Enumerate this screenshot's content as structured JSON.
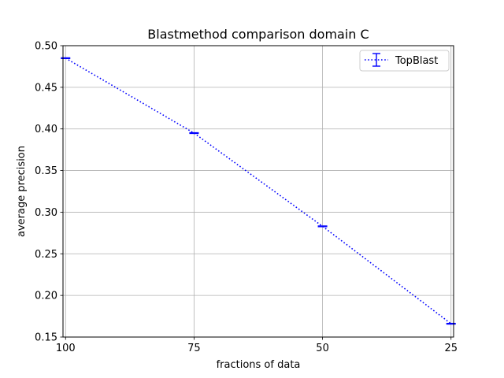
{
  "chart_data": {
    "type": "line",
    "title": "Blastmethod comparison domain C",
    "xlabel": "fractions of data",
    "ylabel": "average precision",
    "x": [
      100,
      75,
      50,
      25
    ],
    "x_reversed": true,
    "xlim": [
      100.5,
      24.5
    ],
    "ylim": [
      0.15,
      0.5
    ],
    "xticks": [
      100,
      75,
      50,
      25
    ],
    "xtick_labels": [
      "100",
      "75",
      "50",
      "25"
    ],
    "yticks": [
      0.15,
      0.2,
      0.25,
      0.3,
      0.35,
      0.4,
      0.45,
      0.5
    ],
    "ytick_labels": [
      "0.15",
      "0.20",
      "0.25",
      "0.30",
      "0.35",
      "0.40",
      "0.45",
      "0.50"
    ],
    "grid": true,
    "legend_position": "top-right",
    "series": [
      {
        "name": "TopBlast",
        "color": "#0000ff",
        "line_style": "dotted",
        "error_bars": true,
        "values": [
          0.485,
          0.395,
          0.283,
          0.166
        ],
        "errors": [
          0.0005,
          0.0005,
          0.0005,
          0.0005
        ]
      }
    ]
  }
}
